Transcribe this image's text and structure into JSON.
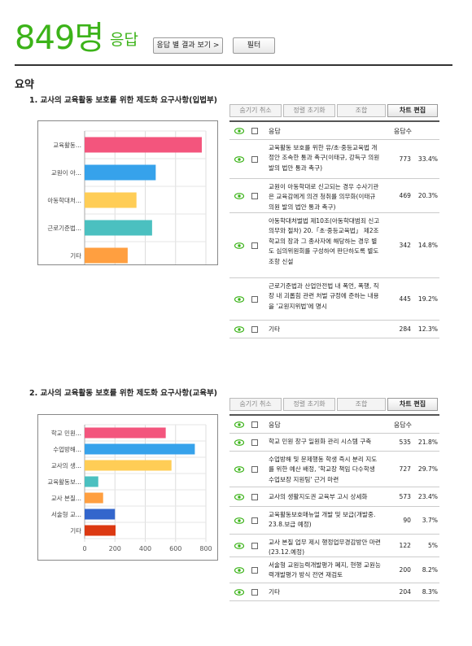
{
  "header": {
    "count": "849명",
    "unit": "응답",
    "view_button": "응답 별 결과 보기 >",
    "filter_button": "필터"
  },
  "summary_title": "요약",
  "toolbar": {
    "hide_cancel": "숨기기 취소",
    "reset_sort": "정렬 초기화",
    "combine": "조합",
    "edit_chart": "차트 편집"
  },
  "table_header": {
    "choice": "응답",
    "count": "응답수"
  },
  "colors": [
    "#f3557d",
    "#36a2eb",
    "#ffcd56",
    "#4bc0c0",
    "#ff9f40",
    "#3366cc",
    "#dc3912"
  ],
  "questions": [
    {
      "title": "1. 교사의 교육활동 보호를 위한 제도화 요구사항(입법부)",
      "chart_data": {
        "type": "bar",
        "orientation": "horizontal",
        "categories": [
          "교육활동...",
          "교원이 아...",
          "아동학대처...",
          "근로기준법...",
          "기타"
        ],
        "values": [
          773,
          469,
          342,
          445,
          284
        ],
        "xticks": [
          "0",
          "200",
          "400",
          "600",
          "800"
        ],
        "xlim": [
          0,
          800
        ],
        "grid": true
      },
      "rows": [
        {
          "label": "교육활동 보호를 위한 유/초·중등교육법 개정안 조속한 통과 촉구(이태규, 강득구 의원 발의 법안 통과 촉구)",
          "count": "773",
          "pct": "33.4%"
        },
        {
          "label": "교원이 아동학대로 신고되는 경우 수사기관은 교육감에게 의견 청취를 의무화(이태규 의원 발의 법안 통과 촉구)",
          "count": "469",
          "pct": "20.3%"
        },
        {
          "label": "아동학대처벌법 제10조(아동학대범죄 신고의무와 절차) 20.「초·중등교육법」 제2조 학교의 장과 그 종사자에 해당하는 경우 별도 심의위원회를 구성하여 판단하도록 별도 조항 신설",
          "count": "342",
          "pct": "14.8%"
        },
        {
          "label": "근로기준법과 산업안전법 내 폭언, 폭행, 직장 내 괴롭힘 관련 처벌 규정에 준하는 내용을 '교원지위법'에 명시",
          "count": "445",
          "pct": "19.2%"
        },
        {
          "label": "기타",
          "count": "284",
          "pct": "12.3%"
        }
      ]
    },
    {
      "title": "2. 교사의 교육활동 보호를 위한 제도화 요구사항(교육부)",
      "chart_data": {
        "type": "bar",
        "orientation": "horizontal",
        "categories": [
          "학교 민원...",
          "수업방해...",
          "교사의 생...",
          "교육활동보...",
          "교사 본질...",
          "서술형 교...",
          "기타"
        ],
        "values": [
          535,
          727,
          573,
          90,
          122,
          200,
          204
        ],
        "xticks": [
          "0",
          "200",
          "400",
          "600",
          "800"
        ],
        "xlim": [
          0,
          800
        ],
        "grid": true
      },
      "rows": [
        {
          "label": "학교 민원 창구 일원화 관리 시스템 구축",
          "count": "535",
          "pct": "21.8%"
        },
        {
          "label": "수업방해 및 문제행동 학생 즉시 분리 지도를 위한 예산 배정, '학교장 책임 다수학생 수업보장 지원팀' 근거 마련",
          "count": "727",
          "pct": "29.7%"
        },
        {
          "label": "교사의 생활지도권 교육부 고시 상세화",
          "count": "573",
          "pct": "23.4%"
        },
        {
          "label": "교육활동보호매뉴얼 개발 및 보급(개발중. 23.8.보급 예정)",
          "count": "90",
          "pct": "3.7%"
        },
        {
          "label": "교사 본질 업무 제시 행정업무경감방안 마련(23.12.예정)",
          "count": "122",
          "pct": "5%"
        },
        {
          "label": "서술형 교원능력개발평가 폐지, 현행 교원능력개발평가 방식 전면 재검토",
          "count": "200",
          "pct": "8.2%"
        },
        {
          "label": "기타",
          "count": "204",
          "pct": "8.3%"
        }
      ]
    }
  ]
}
